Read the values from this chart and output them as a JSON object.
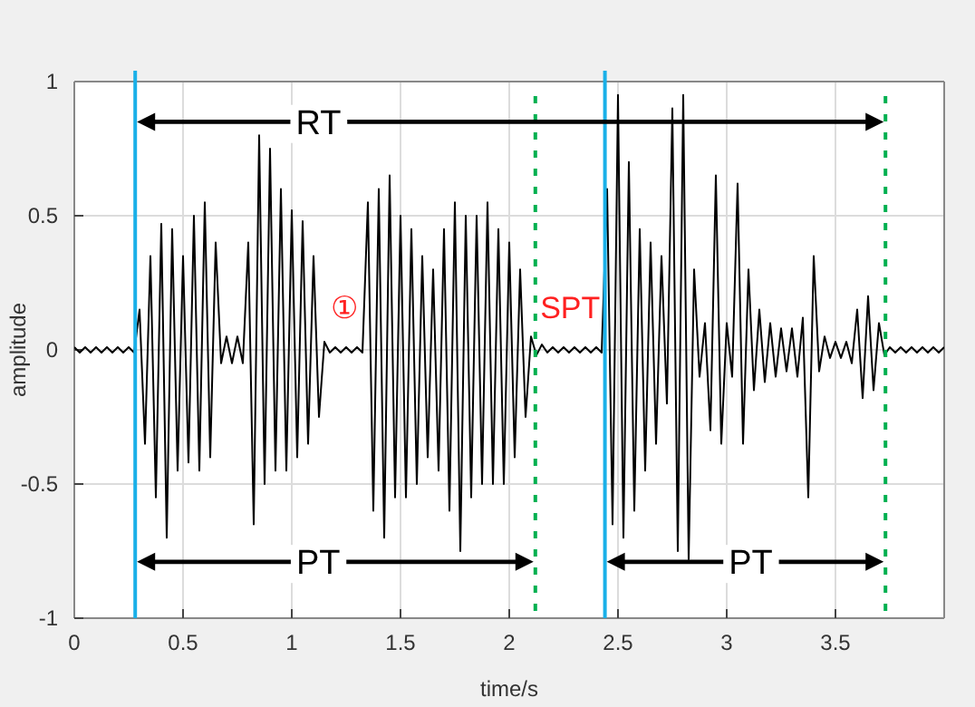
{
  "chart_data": {
    "type": "line",
    "xlabel": "time/s",
    "ylabel": "amplitude",
    "xlim": [
      0,
      4
    ],
    "ylim": [
      -1,
      1
    ],
    "xticks": [
      0,
      0.5,
      1,
      1.5,
      2,
      2.5,
      3,
      3.5
    ],
    "yticks": [
      -1,
      -0.5,
      0,
      0.5,
      1
    ],
    "grid": true,
    "marker": "none",
    "line_style": "solid",
    "series": [
      {
        "color": "#000000",
        "x": [
          0,
          0.025,
          0.05,
          0.075,
          0.1,
          0.125,
          0.15,
          0.175,
          0.2,
          0.225,
          0.25,
          0.275,
          0.3,
          0.325,
          0.35,
          0.375,
          0.4,
          0.425,
          0.45,
          0.475,
          0.5,
          0.525,
          0.55,
          0.575,
          0.6,
          0.625,
          0.65,
          0.675,
          0.7,
          0.725,
          0.75,
          0.775,
          0.8,
          0.825,
          0.85,
          0.875,
          0.9,
          0.925,
          0.95,
          0.975,
          1,
          1.025,
          1.05,
          1.075,
          1.1,
          1.125,
          1.15,
          1.175,
          1.2,
          1.225,
          1.25,
          1.275,
          1.3,
          1.325,
          1.35,
          1.375,
          1.4,
          1.425,
          1.45,
          1.475,
          1.5,
          1.525,
          1.55,
          1.575,
          1.6,
          1.625,
          1.65,
          1.675,
          1.7,
          1.725,
          1.75,
          1.775,
          1.8,
          1.825,
          1.85,
          1.875,
          1.9,
          1.925,
          1.95,
          1.975,
          2,
          2.025,
          2.05,
          2.075,
          2.1,
          2.125,
          2.15,
          2.175,
          2.2,
          2.225,
          2.25,
          2.275,
          2.3,
          2.325,
          2.35,
          2.375,
          2.4,
          2.425,
          2.45,
          2.475,
          2.5,
          2.525,
          2.55,
          2.575,
          2.6,
          2.625,
          2.65,
          2.675,
          2.7,
          2.725,
          2.75,
          2.775,
          2.8,
          2.825,
          2.85,
          2.875,
          2.9,
          2.925,
          2.95,
          2.975,
          3,
          3.025,
          3.05,
          3.075,
          3.1,
          3.125,
          3.15,
          3.175,
          3.2,
          3.225,
          3.25,
          3.275,
          3.3,
          3.325,
          3.35,
          3.375,
          3.4,
          3.425,
          3.45,
          3.475,
          3.5,
          3.525,
          3.55,
          3.575,
          3.6,
          3.625,
          3.65,
          3.675,
          3.7,
          3.725,
          3.75,
          3.775,
          3.8,
          3.825,
          3.85,
          3.875,
          3.9,
          3.925,
          3.95,
          3.975,
          4
        ],
        "values": [
          0.01,
          -0.01,
          0.01,
          -0.01,
          0.01,
          -0.01,
          0.01,
          -0.01,
          0.01,
          -0.01,
          0.01,
          -0.01,
          0.15,
          -0.35,
          0.35,
          -0.55,
          0.47,
          -0.7,
          0.45,
          -0.45,
          0.35,
          -0.42,
          0.5,
          -0.45,
          0.55,
          -0.4,
          0.4,
          -0.05,
          0.05,
          -0.05,
          0.05,
          -0.05,
          0.4,
          -0.65,
          0.8,
          -0.5,
          0.75,
          -0.45,
          0.6,
          -0.45,
          0.52,
          -0.4,
          0.48,
          -0.35,
          0.35,
          -0.25,
          0.03,
          -0.01,
          0.01,
          -0.01,
          0.01,
          -0.01,
          0.01,
          -0.01,
          0.55,
          -0.6,
          0.6,
          -0.7,
          0.65,
          -0.55,
          0.5,
          -0.55,
          0.45,
          -0.5,
          0.35,
          -0.4,
          0.3,
          -0.45,
          0.45,
          -0.6,
          0.55,
          -0.75,
          0.5,
          -0.55,
          0.5,
          -0.5,
          0.55,
          -0.5,
          0.45,
          -0.5,
          0.4,
          -0.4,
          0.3,
          -0.25,
          0.05,
          -0.02,
          0.02,
          -0.01,
          0.01,
          -0.01,
          0.01,
          -0.01,
          0.01,
          -0.01,
          0.01,
          -0.01,
          0.01,
          -0.01,
          0.6,
          -0.65,
          0.95,
          -0.7,
          0.7,
          -0.6,
          0.45,
          -0.45,
          0.4,
          -0.35,
          0.35,
          -0.2,
          0.9,
          -0.75,
          0.95,
          -0.78,
          0.3,
          -0.1,
          0.1,
          -0.3,
          0.65,
          -0.35,
          0.1,
          -0.1,
          0.62,
          -0.35,
          0.3,
          -0.15,
          0.15,
          -0.12,
          0.1,
          -0.1,
          0.08,
          -0.08,
          0.08,
          -0.1,
          0.12,
          -0.55,
          0.35,
          -0.08,
          0.05,
          -0.03,
          0.03,
          -0.03,
          0.03,
          -0.05,
          0.15,
          -0.18,
          0.2,
          -0.15,
          0.1,
          -0.02,
          0.01,
          -0.01,
          0.01,
          -0.01,
          0.01,
          -0.01,
          0.01,
          -0.01,
          0.01,
          -0.01,
          0.01
        ]
      }
    ],
    "ref_lines": [
      {
        "axis": "x",
        "value": 0.28,
        "color": "#1ab0e8",
        "line_style": "solid"
      },
      {
        "axis": "x",
        "value": 2.12,
        "color": "#00b050",
        "line_style": "dashed"
      },
      {
        "axis": "x",
        "value": 2.44,
        "color": "#1ab0e8",
        "line_style": "solid"
      },
      {
        "axis": "x",
        "value": 3.73,
        "color": "#00b050",
        "line_style": "dashed"
      }
    ],
    "annotations": [
      "RT",
      "PT",
      "PT",
      "SPT",
      "①"
    ]
  }
}
